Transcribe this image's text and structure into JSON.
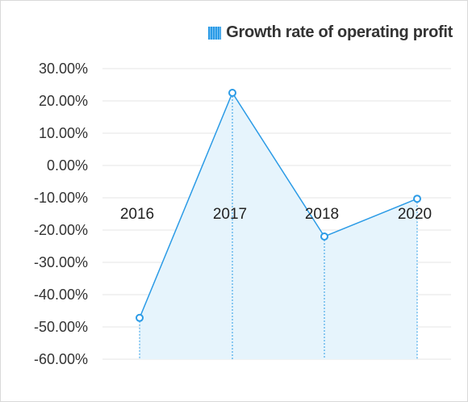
{
  "chart_data": {
    "type": "area",
    "title": "",
    "xlabel": "",
    "ylabel": "",
    "categories": [
      "2016",
      "2017",
      "2018",
      "2020"
    ],
    "series": [
      {
        "name": "Growth rate of operating profit",
        "values": [
          -47.2,
          22.5,
          -22.0,
          -10.3
        ]
      }
    ],
    "ylim": [
      -60,
      30
    ],
    "yticks": [
      "30.00%",
      "20.00%",
      "10.00%",
      "0.00%",
      "-10.00%",
      "-20.00%",
      "-30.00%",
      "-40.00%",
      "-50.00%",
      "-60.00%"
    ],
    "grid": true,
    "legend_position": "top-right",
    "colors": {
      "line": "#2b9be6",
      "fill": "#e6f4fc",
      "grid": "#e5e5e5",
      "marker_fill": "#ffffff"
    }
  }
}
